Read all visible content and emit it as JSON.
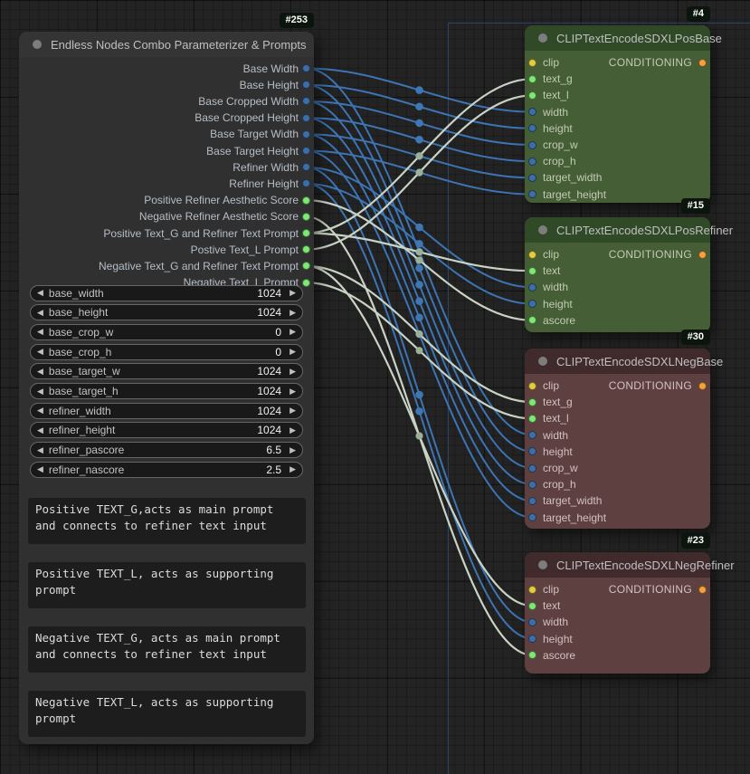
{
  "colors": {
    "wire_blue": "#3c74b4",
    "wire_string": "#c9d3c4",
    "wire_dot_blue": "#3f76b4",
    "wire_dot_string": "#9cb096",
    "slot_blue": "#3d6ea8",
    "slot_green": "#7de874",
    "slot_yellow": "#e3cc3e",
    "slot_orange": "#f2a13c",
    "group_outline": "#2c4166",
    "node_gray_body": "#303030",
    "node_gray_title": "#343434",
    "node_green_body": "#455e36",
    "node_green_title": "#304a27",
    "node_red_body": "#5e4040",
    "node_red_title": "#402a2c"
  },
  "icons": {
    "decrement_arrow": "◀",
    "increment_arrow": "▶"
  },
  "left_node": {
    "badge": "#253",
    "title": "Endless Nodes Combo Parameterizer & Prompts",
    "outputs": [
      {
        "label": "Base Width",
        "type": "blue"
      },
      {
        "label": "Base Height",
        "type": "blue"
      },
      {
        "label": "Base Cropped Width",
        "type": "blue"
      },
      {
        "label": "Base Cropped Height",
        "type": "blue"
      },
      {
        "label": "Base Target Width",
        "type": "blue"
      },
      {
        "label": "Base Target Height",
        "type": "blue"
      },
      {
        "label": "Refiner Width",
        "type": "blue"
      },
      {
        "label": "Refiner Height",
        "type": "blue"
      },
      {
        "label": "Positive Refiner Aesthetic Score",
        "type": "green"
      },
      {
        "label": "Negative Refiner Aesthetic Score",
        "type": "green"
      },
      {
        "label": "Positive Text_G and Refiner Text Prompt",
        "type": "green"
      },
      {
        "label": "Postive Text_L Prompt",
        "type": "green"
      },
      {
        "label": "Negative Text_G and Refiner Text Prompt",
        "type": "green"
      },
      {
        "label": "Negative Text_L Prompt",
        "type": "green"
      }
    ],
    "widgets": [
      {
        "name": "base_width",
        "value": "1024"
      },
      {
        "name": "base_height",
        "value": "1024"
      },
      {
        "name": "base_crop_w",
        "value": "0"
      },
      {
        "name": "base_crop_h",
        "value": "0"
      },
      {
        "name": "base_target_w",
        "value": "1024"
      },
      {
        "name": "base_target_h",
        "value": "1024"
      },
      {
        "name": "refiner_width",
        "value": "1024"
      },
      {
        "name": "refiner_height",
        "value": "1024"
      },
      {
        "name": "refiner_pascore",
        "value": "6.5"
      },
      {
        "name": "refiner_nascore",
        "value": "2.5"
      }
    ],
    "textboxes": [
      {
        "lines": [
          "Positive TEXT_G,acts as main prompt",
          "and connects to refiner text input"
        ]
      },
      {
        "lines": [
          "Positive TEXT_L, acts as supporting",
          "prompt"
        ]
      },
      {
        "lines": [
          "Negative TEXT_G, acts as main prompt",
          "and connects to refiner text input"
        ]
      },
      {
        "lines": [
          "Negative TEXT_L, acts as supporting",
          "prompt"
        ]
      }
    ]
  },
  "right_nodes": [
    {
      "badge": "#4",
      "title": "CLIPTextEncodeSDXLPosBase",
      "theme": "green",
      "inputs": [
        {
          "name": "clip",
          "type": "yellow"
        },
        {
          "name": "text_g",
          "type": "green"
        },
        {
          "name": "text_l",
          "type": "green"
        },
        {
          "name": "width",
          "type": "blue"
        },
        {
          "name": "height",
          "type": "blue"
        },
        {
          "name": "crop_w",
          "type": "blue"
        },
        {
          "name": "crop_h",
          "type": "blue"
        },
        {
          "name": "target_width",
          "type": "blue"
        },
        {
          "name": "target_height",
          "type": "blue"
        }
      ],
      "output": {
        "label": "CONDITIONING",
        "type": "orange"
      }
    },
    {
      "badge": "#15",
      "title": "CLIPTextEncodeSDXLPosRefiner",
      "theme": "green",
      "inputs": [
        {
          "name": "clip",
          "type": "yellow"
        },
        {
          "name": "text",
          "type": "green"
        },
        {
          "name": "width",
          "type": "blue"
        },
        {
          "name": "height",
          "type": "blue"
        },
        {
          "name": "ascore",
          "type": "green"
        }
      ],
      "output": {
        "label": "CONDITIONING",
        "type": "orange"
      }
    },
    {
      "badge": "#30",
      "title": "CLIPTextEncodeSDXLNegBase",
      "theme": "red",
      "inputs": [
        {
          "name": "clip",
          "type": "yellow"
        },
        {
          "name": "text_g",
          "type": "green"
        },
        {
          "name": "text_l",
          "type": "green"
        },
        {
          "name": "width",
          "type": "blue"
        },
        {
          "name": "height",
          "type": "blue"
        },
        {
          "name": "crop_w",
          "type": "blue"
        },
        {
          "name": "crop_h",
          "type": "blue"
        },
        {
          "name": "target_width",
          "type": "blue"
        },
        {
          "name": "target_height",
          "type": "blue"
        }
      ],
      "output": {
        "label": "CONDITIONING",
        "type": "orange"
      }
    },
    {
      "badge": "#23",
      "title": "CLIPTextEncodeSDXLNegRefiner",
      "theme": "red",
      "inputs": [
        {
          "name": "clip",
          "type": "yellow"
        },
        {
          "name": "text",
          "type": "green"
        },
        {
          "name": "width",
          "type": "blue"
        },
        {
          "name": "height",
          "type": "blue"
        },
        {
          "name": "ascore",
          "type": "green"
        }
      ],
      "output": {
        "label": "CONDITIONING",
        "type": "orange"
      }
    }
  ],
  "links": [
    {
      "from_output": "Base Width",
      "to_node": "#4",
      "to_input": "width"
    },
    {
      "from_output": "Base Height",
      "to_node": "#4",
      "to_input": "height"
    },
    {
      "from_output": "Base Cropped Width",
      "to_node": "#4",
      "to_input": "crop_w"
    },
    {
      "from_output": "Base Cropped Height",
      "to_node": "#4",
      "to_input": "crop_h"
    },
    {
      "from_output": "Base Target Width",
      "to_node": "#4",
      "to_input": "target_width"
    },
    {
      "from_output": "Base Target Height",
      "to_node": "#4",
      "to_input": "target_height"
    },
    {
      "from_output": "Refiner Width",
      "to_node": "#15",
      "to_input": "width"
    },
    {
      "from_output": "Refiner Height",
      "to_node": "#15",
      "to_input": "height"
    },
    {
      "from_output": "Base Width",
      "to_node": "#30",
      "to_input": "width"
    },
    {
      "from_output": "Base Height",
      "to_node": "#30",
      "to_input": "height"
    },
    {
      "from_output": "Base Cropped Width",
      "to_node": "#30",
      "to_input": "crop_w"
    },
    {
      "from_output": "Base Cropped Height",
      "to_node": "#30",
      "to_input": "crop_h"
    },
    {
      "from_output": "Base Target Width",
      "to_node": "#30",
      "to_input": "target_width"
    },
    {
      "from_output": "Base Target Height",
      "to_node": "#30",
      "to_input": "target_height"
    },
    {
      "from_output": "Refiner Width",
      "to_node": "#23",
      "to_input": "width"
    },
    {
      "from_output": "Refiner Height",
      "to_node": "#23",
      "to_input": "height"
    },
    {
      "from_output": "Positive Refiner Aesthetic Score",
      "to_node": "#15",
      "to_input": "ascore"
    },
    {
      "from_output": "Negative Refiner Aesthetic Score",
      "to_node": "#23",
      "to_input": "ascore"
    },
    {
      "from_output": "Positive Text_G and Refiner Text Prompt",
      "to_node": "#4",
      "to_input": "text_g"
    },
    {
      "from_output": "Positive Text_G and Refiner Text Prompt",
      "to_node": "#15",
      "to_input": "text"
    },
    {
      "from_output": "Postive Text_L Prompt",
      "to_node": "#4",
      "to_input": "text_l"
    },
    {
      "from_output": "Negative Text_G and Refiner Text Prompt",
      "to_node": "#30",
      "to_input": "text_g"
    },
    {
      "from_output": "Negative Text_G and Refiner Text Prompt",
      "to_node": "#23",
      "to_input": "text"
    },
    {
      "from_output": "Negative Text_L Prompt",
      "to_node": "#30",
      "to_input": "text_l"
    }
  ]
}
